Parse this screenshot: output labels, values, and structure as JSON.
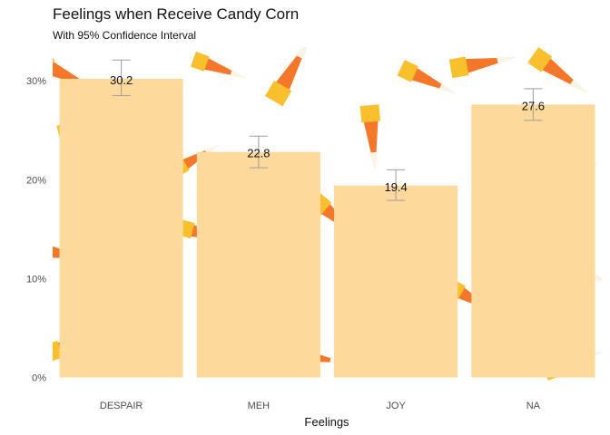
{
  "chart_data": {
    "type": "bar",
    "title": "Feelings when Receive Candy Corn",
    "subtitle": "With 95% Confidence Interval",
    "xlabel": "Feelings",
    "ylabel": "",
    "categories": [
      "DESPAIR",
      "MEH",
      "JOY",
      "NA"
    ],
    "values": [
      30.2,
      22.8,
      19.4,
      27.6
    ],
    "value_labels": [
      "30.2",
      "22.8",
      "19.4",
      "27.6"
    ],
    "ci_low": [
      28.5,
      21.2,
      17.9,
      26.0
    ],
    "ci_high": [
      32.1,
      24.4,
      21.0,
      29.2
    ],
    "ylim": [
      -1.6,
      33.4
    ],
    "yticks": [
      0,
      10,
      20,
      30
    ],
    "ytick_labels": [
      "0%",
      "10%",
      "20%",
      "30%"
    ],
    "grid": false,
    "legend": "none",
    "bar_color": "#fdd99b",
    "errorbar_color": "#9e9e9e",
    "background_theme": "candy corn pattern"
  }
}
